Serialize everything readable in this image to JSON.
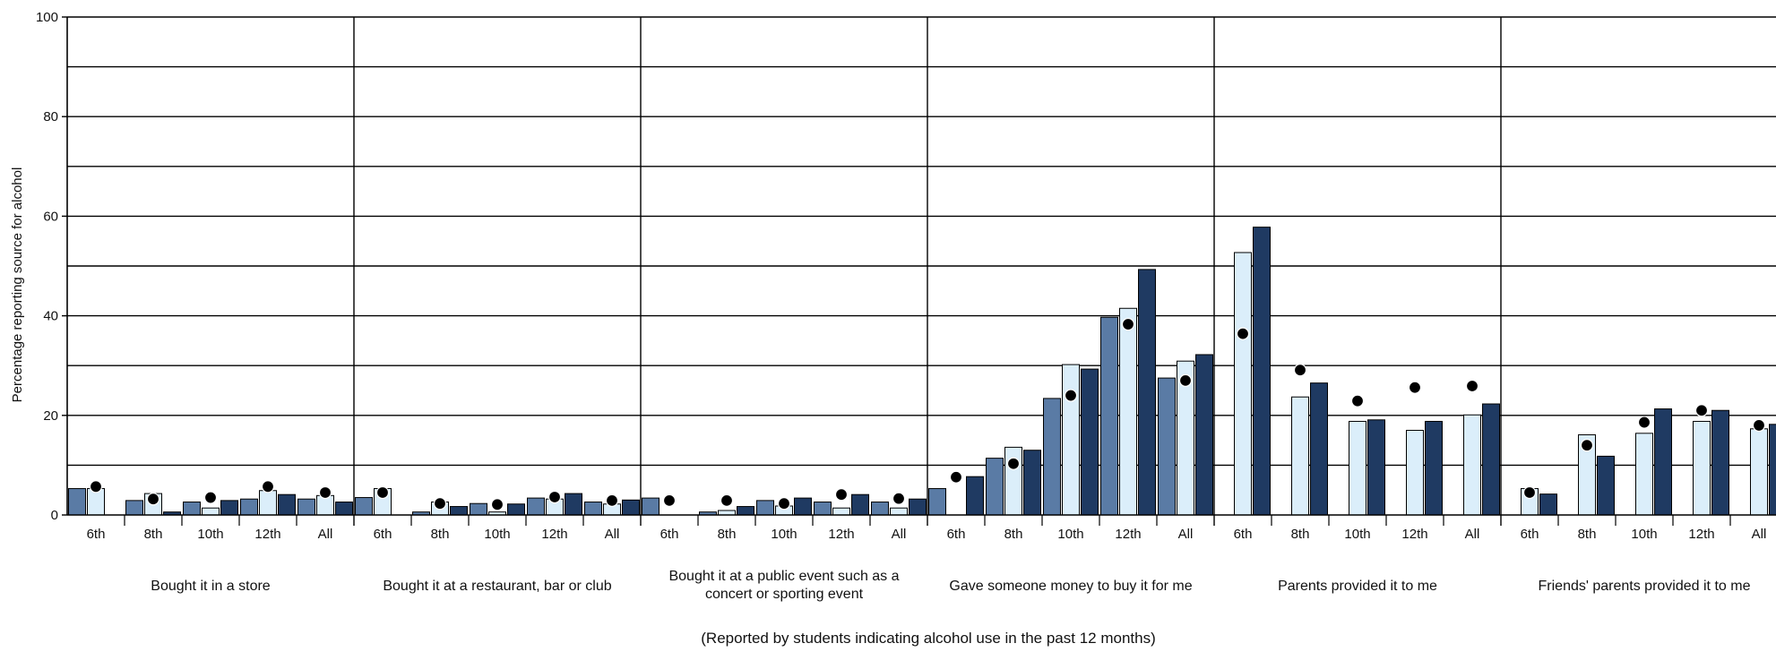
{
  "chart_data": {
    "type": "bar",
    "ylabel": "Percentage reporting source for alcohol",
    "xlabel": "",
    "note": "(Reported by students indicating alcohol use in the past 12 months)",
    "ylim": [
      0,
      100
    ],
    "yticks": [
      0,
      20,
      40,
      60,
      80,
      100
    ],
    "grid": true,
    "legend": "none",
    "grades": [
      "6th",
      "8th",
      "10th",
      "12th",
      "All"
    ],
    "series_colors": [
      "#5a7ba5",
      "#dbeefa",
      "#1f3a62"
    ],
    "marker_color": "#000000",
    "groups": [
      {
        "label": "Bought it in a store",
        "values": [
          [
            5.3,
            5.3,
            null
          ],
          [
            2.9,
            4.3,
            0.6
          ],
          [
            2.6,
            1.4,
            2.9
          ],
          [
            3.2,
            4.9,
            4.1
          ],
          [
            3.2,
            3.9,
            2.6
          ]
        ],
        "markers": [
          5.7,
          3.2,
          3.5,
          5.7,
          4.5
        ]
      },
      {
        "label": "Bought it at a restaurant, bar or club",
        "values": [
          [
            3.5,
            5.3,
            null
          ],
          [
            0.6,
            2.6,
            1.7
          ],
          [
            2.3,
            0.6,
            2.2
          ],
          [
            3.4,
            3.2,
            4.3
          ],
          [
            2.6,
            2.2,
            3.0
          ]
        ],
        "markers": [
          4.5,
          2.3,
          2.1,
          3.6,
          2.9
        ]
      },
      {
        "label": "Bought it at a public event such as a concert or sporting event",
        "values": [
          [
            3.4,
            null,
            null
          ],
          [
            0.6,
            0.9,
            1.7
          ],
          [
            2.9,
            1.8,
            3.4
          ],
          [
            2.6,
            1.4,
            4.1
          ],
          [
            2.6,
            1.4,
            3.2
          ]
        ],
        "markers": [
          2.9,
          2.9,
          2.3,
          4.1,
          3.3
        ]
      },
      {
        "label": "Gave someone money to buy it for me",
        "values": [
          [
            5.3,
            null,
            7.7
          ],
          [
            11.4,
            13.6,
            13.0
          ],
          [
            23.4,
            30.2,
            29.3
          ],
          [
            39.7,
            41.5,
            49.3
          ],
          [
            27.5,
            30.9,
            32.2
          ]
        ],
        "markers": [
          7.6,
          10.3,
          24.0,
          38.3,
          27.0
        ]
      },
      {
        "label": "Parents provided it to me",
        "values": [
          [
            null,
            52.7,
            57.8
          ],
          [
            null,
            23.7,
            26.5
          ],
          [
            null,
            18.8,
            19.1
          ],
          [
            null,
            17.0,
            18.8
          ],
          [
            null,
            20.1,
            22.3
          ]
        ],
        "markers": [
          36.4,
          29.1,
          22.9,
          25.6,
          25.9
        ]
      },
      {
        "label": "Friends' parents provided it to me",
        "values": [
          [
            null,
            5.3,
            4.2
          ],
          [
            null,
            16.1,
            11.8
          ],
          [
            null,
            16.4,
            21.3
          ],
          [
            null,
            18.8,
            21.0
          ],
          [
            null,
            17.3,
            18.2
          ]
        ],
        "markers": [
          4.5,
          14.0,
          18.6,
          21.0,
          18.0
        ]
      }
    ]
  }
}
